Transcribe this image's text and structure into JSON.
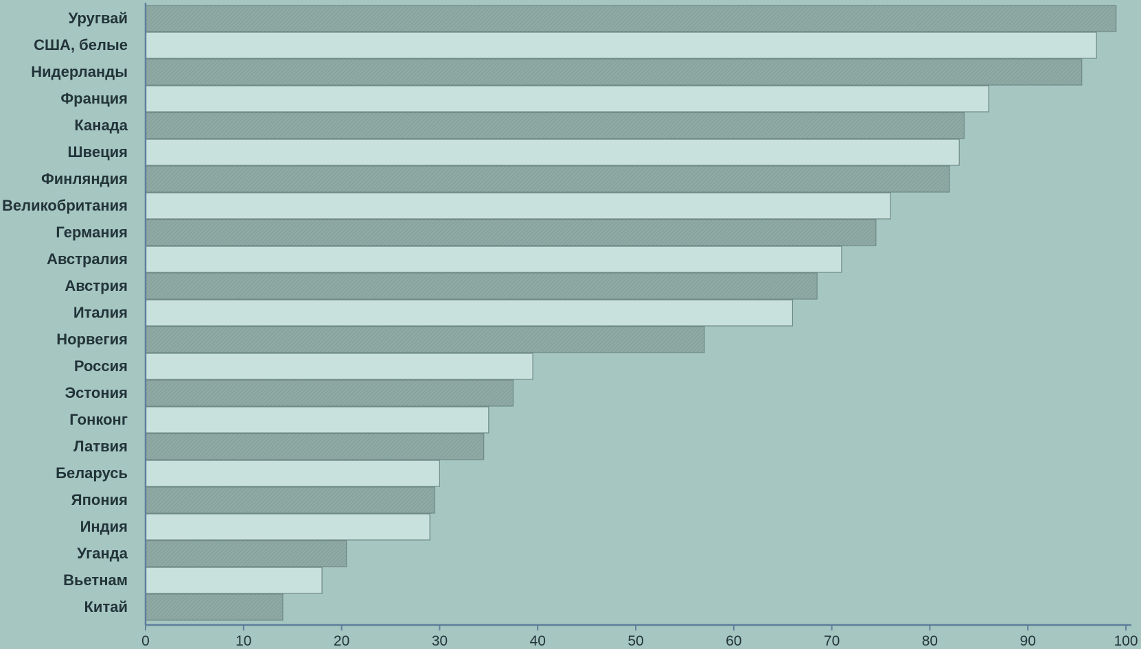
{
  "chart_data": {
    "type": "bar",
    "orientation": "horizontal",
    "categories": [
      "Уругвай",
      "США, белые",
      "Нидерланды",
      "Франция",
      "Канада",
      "Швеция",
      "Финляндия",
      "Великобритания",
      "Германия",
      "Австралия",
      "Австрия",
      "Италия",
      "Норвегия",
      "Россия",
      "Эстония",
      "Гонконг",
      "Латвия",
      "Беларусь",
      "Япония",
      "Индия",
      "Уганда",
      "Вьетнам",
      "Китай"
    ],
    "values": [
      99,
      97,
      95.5,
      86,
      83.5,
      83,
      82,
      76,
      74.5,
      71,
      68.5,
      66,
      57,
      39.5,
      37.5,
      35,
      34.5,
      30,
      29.5,
      29,
      20.5,
      18,
      14
    ],
    "xlim": [
      0,
      100
    ],
    "xticks": [
      0,
      10,
      20,
      30,
      40,
      50,
      60,
      70,
      80,
      90,
      100
    ],
    "title": "",
    "xlabel": "",
    "ylabel": "",
    "grid": false,
    "colors": {
      "background": "#a6c6c1",
      "bar_dark": "#8fa9a4",
      "bar_light": "#c9e1dc",
      "stroke": "#6f8a86",
      "axis": "#5f7f9b",
      "text": "#22343a"
    }
  }
}
